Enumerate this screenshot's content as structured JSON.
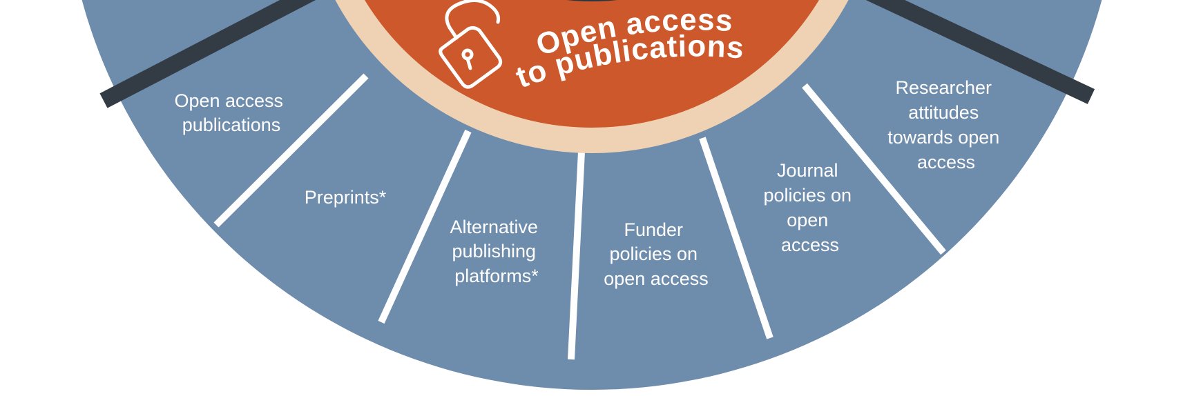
{
  "center": {
    "title_line1": "Open access",
    "title_line2": "to publications",
    "icon": "open-padlock-icon"
  },
  "segments": [
    {
      "lines": [
        "Open access",
        "publications"
      ]
    },
    {
      "lines": [
        "Preprints*"
      ]
    },
    {
      "lines": [
        "Alternative",
        "publishing",
        "platforms*"
      ]
    },
    {
      "lines": [
        "Funder",
        "policies on",
        "open access"
      ]
    },
    {
      "lines": [
        "Journal",
        "policies on",
        "open",
        "access"
      ]
    },
    {
      "lines": [
        "Researcher",
        "attitudes",
        "towards open",
        "access"
      ]
    }
  ],
  "colors": {
    "outer_ring": "#6e8cab",
    "cream_ring": "#efd1b3",
    "center": "#cc582b",
    "hub": "#2c3640",
    "dark_divider": "#333c45",
    "light_divider": "#ffffff",
    "label_text": "#ffffff"
  }
}
